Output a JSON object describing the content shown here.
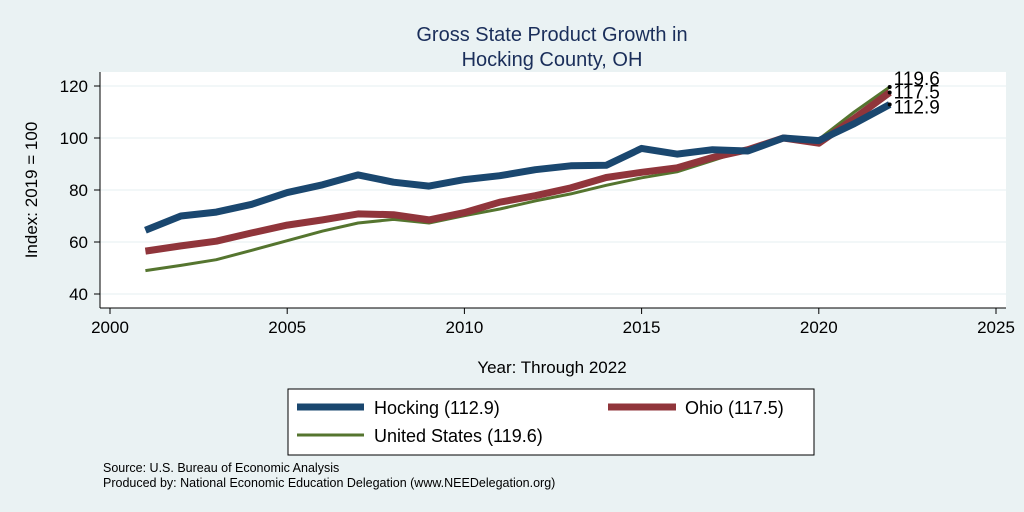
{
  "chart_data": {
    "type": "line",
    "title": [
      "Gross State Product Growth in",
      "Hocking County, OH"
    ],
    "xlabel": "Year: Through 2022",
    "ylabel": "Index: 2019 = 100",
    "xlim": [
      2000,
      2025
    ],
    "ylim": [
      40,
      120
    ],
    "xticks": [
      "2000",
      "2005",
      "2010",
      "2015",
      "2020",
      "2025"
    ],
    "yticks": [
      "40",
      "60",
      "80",
      "100",
      "120"
    ],
    "grid": true,
    "legend_position": "bottom",
    "x": [
      2001,
      2002,
      2003,
      2004,
      2005,
      2006,
      2007,
      2008,
      2009,
      2010,
      2011,
      2012,
      2013,
      2014,
      2015,
      2016,
      2017,
      2018,
      2019,
      2020,
      2021,
      2022
    ],
    "series": [
      {
        "name": "Hocking",
        "legend_label": "Hocking  (112.9)",
        "color": "#1a476f",
        "values": [
          64.5,
          70,
          71.5,
          74.5,
          79,
          82,
          85.8,
          83,
          81.5,
          84,
          85.5,
          87.8,
          89.3,
          89.5,
          96,
          93.8,
          95.5,
          95,
          100,
          99,
          105.5,
          112.9
        ],
        "end_label": "112.9"
      },
      {
        "name": "Ohio",
        "legend_label": "Ohio (117.5)",
        "color": "#90353b",
        "values": [
          56.5,
          58.5,
          60.3,
          63.5,
          66.5,
          68.5,
          70.8,
          70.5,
          68.5,
          71.3,
          75.3,
          77.8,
          80.8,
          84.8,
          86.8,
          88.5,
          92.5,
          95.5,
          100,
          98,
          107.5,
          117.5
        ],
        "end_label": "117.5"
      },
      {
        "name": "United States",
        "legend_label": "United States (119.6)",
        "color": "#55752f",
        "values": [
          49,
          51,
          53.2,
          56.8,
          60.5,
          64.2,
          67.3,
          68.7,
          67.3,
          70.1,
          72.7,
          75.8,
          78.5,
          81.8,
          84.7,
          87,
          91.3,
          95.8,
          100.5,
          99.5,
          110,
          119.6
        ],
        "end_label": "119.6"
      }
    ],
    "source": [
      "Source: U.S. Bureau of Economic Analysis",
      "Produced by: National Economic Education Delegation (www.NEEDelegation.org)"
    ]
  }
}
